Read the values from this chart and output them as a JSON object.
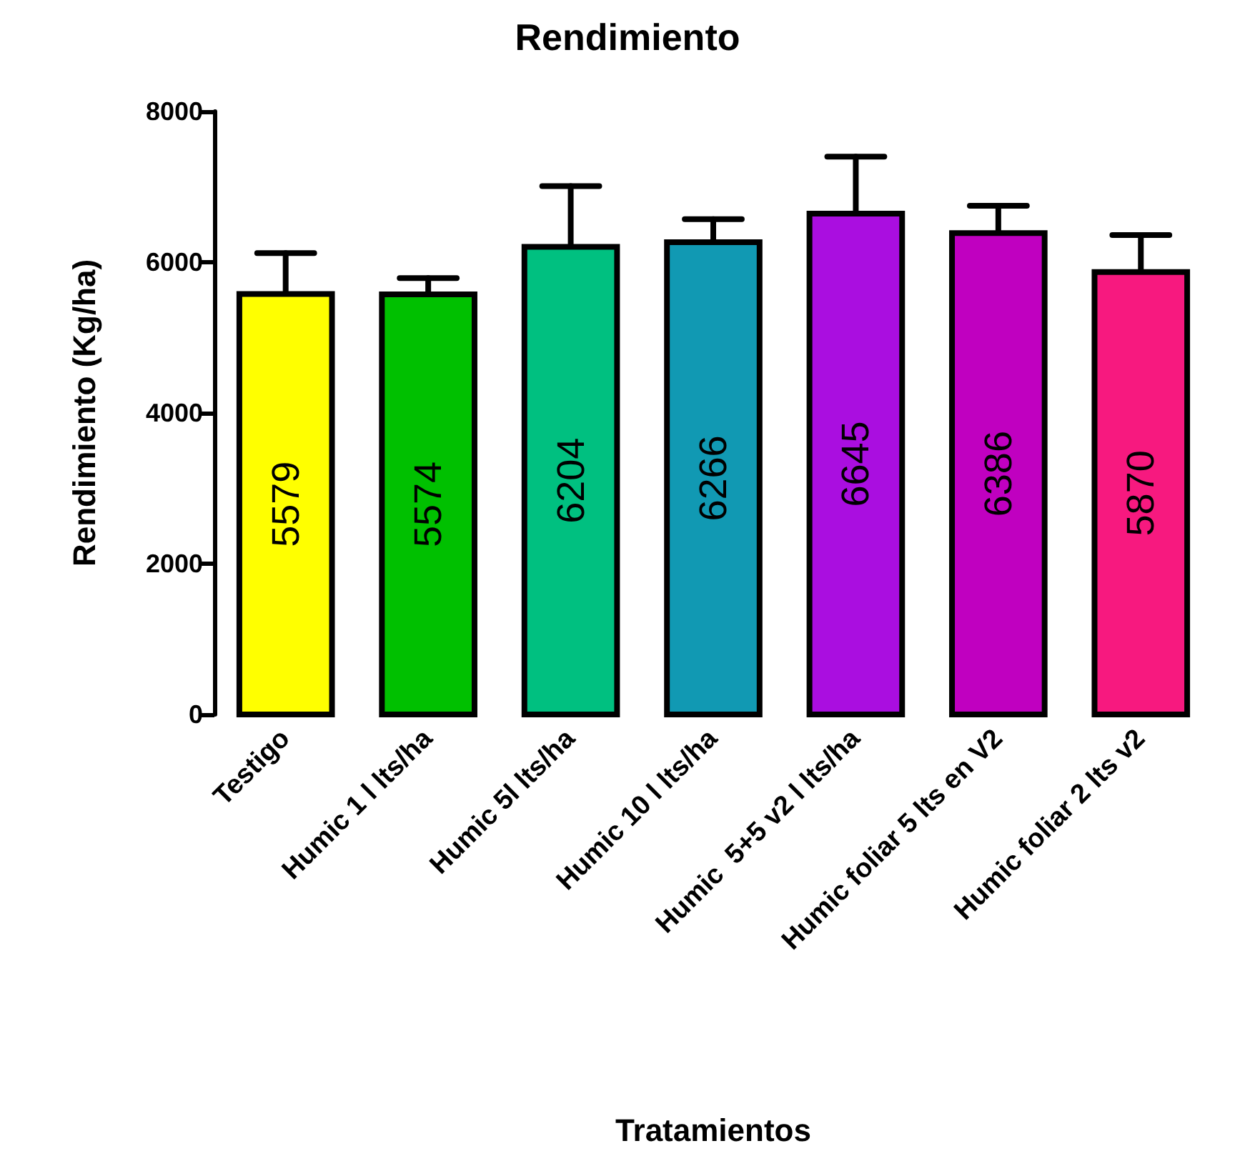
{
  "chart_data": {
    "type": "bar",
    "title": "Rendimiento",
    "xlabel": "Tratamientos",
    "ylabel": "Rendimiento (Kg/ha)",
    "categories": [
      "Testigo",
      "Humic 1 l lts/ha",
      "Humic 5l lts/ha",
      "Humic 10 l lts/ha",
      "Humic  5+5 v2 l lts/ha",
      "Humic foliar 5 lts en V2",
      "Humic foliar 2 lts v2"
    ],
    "values": [
      5579,
      5574,
      6204,
      6266,
      6645,
      6386,
      5870
    ],
    "colors": [
      "#ffff00",
      "#00c000",
      "#00c080",
      "#1199b3",
      "#aa0ee0",
      "#c000c0",
      "#f7197f"
    ],
    "errors": [
      [
        5579,
        6120
      ],
      [
        5574,
        5790
      ],
      [
        6204,
        7010
      ],
      [
        6266,
        6570
      ],
      [
        6645,
        7400
      ],
      [
        6386,
        6750
      ],
      [
        5870,
        6360
      ]
    ],
    "value_labels": [
      "5579",
      "5574",
      "6204",
      "6266",
      "6645",
      "6386",
      "5870"
    ],
    "ylim": [
      0,
      8000
    ],
    "yticks": [
      0,
      2000,
      4000,
      6000,
      8000
    ],
    "grid": false
  }
}
